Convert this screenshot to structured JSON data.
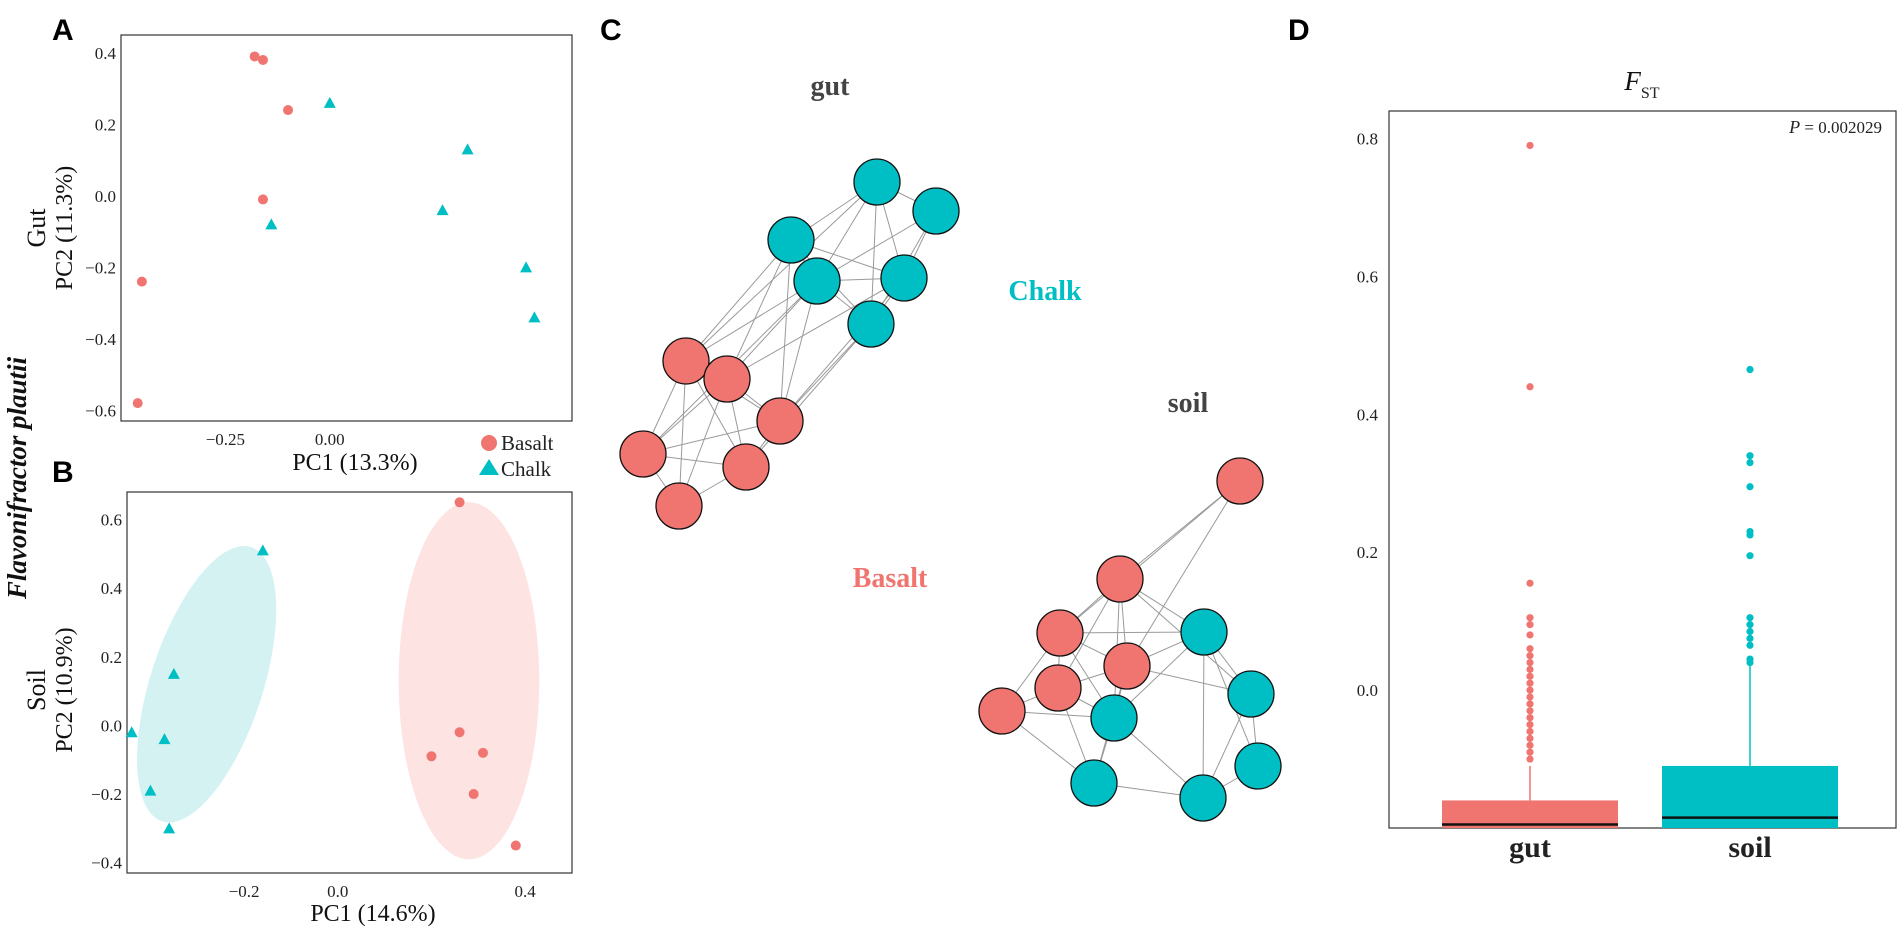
{
  "figure": {
    "species_label": "Flavonifractor plautii",
    "legend": {
      "basalt": "Basalt",
      "chalk": "Chalk"
    },
    "colors": {
      "basalt": "#F07470",
      "chalk": "#00BFC4",
      "basalt_ellipse": "#FDE3E1",
      "chalk_ellipse": "#D5F2F3",
      "edge": "#9a9a9a"
    }
  },
  "chart_data": [
    {
      "panel": "A",
      "type": "scatter",
      "group_label": "Gut",
      "xlabel": "PC1 (13.3%)",
      "ylabel": "PC2 (11.3%)",
      "xlim": [
        -0.5,
        0.58
      ],
      "ylim": [
        -0.63,
        0.45
      ],
      "x_ticks": [
        -0.25,
        0.0
      ],
      "x_tick_labels": [
        "−0.25",
        "0.00"
      ],
      "y_ticks": [
        0.4,
        0.2,
        0.0,
        -0.2,
        -0.4,
        -0.6
      ],
      "y_tick_labels": [
        "0.4",
        "0.2",
        "0.0",
        "−0.2",
        "−0.4",
        "−0.6"
      ],
      "series": [
        {
          "name": "Basalt",
          "marker": "circle",
          "x": [
            -0.18,
            -0.16,
            -0.1,
            -0.16,
            -0.45,
            -0.46
          ],
          "y": [
            0.39,
            0.38,
            0.24,
            -0.01,
            -0.24,
            -0.58
          ]
        },
        {
          "name": "Chalk",
          "marker": "triangle",
          "x": [
            0.0,
            0.33,
            0.27,
            -0.14,
            0.47,
            0.49
          ],
          "y": [
            0.26,
            0.13,
            -0.04,
            -0.08,
            -0.2,
            -0.34
          ]
        }
      ]
    },
    {
      "panel": "B",
      "type": "scatter",
      "group_label": "Soil",
      "xlabel": "PC1 (14.6%)",
      "ylabel": "PC2 (10.9%)",
      "xlim": [
        -0.45,
        0.5
      ],
      "ylim": [
        -0.43,
        0.68
      ],
      "x_ticks": [
        -0.2,
        0.0,
        0.4
      ],
      "x_tick_labels": [
        "−0.2",
        "0.0",
        "0.4"
      ],
      "y_ticks": [
        0.6,
        0.4,
        0.2,
        0.0,
        -0.2,
        -0.4
      ],
      "y_tick_labels": [
        "0.6",
        "0.4",
        "0.2",
        "0.0",
        "−0.2",
        "−0.4"
      ],
      "series": [
        {
          "name": "Basalt",
          "marker": "circle",
          "x": [
            0.26,
            0.26,
            0.2,
            0.31,
            0.29,
            0.38
          ],
          "y": [
            0.65,
            -0.02,
            -0.09,
            -0.08,
            -0.2,
            -0.35
          ]
        },
        {
          "name": "Chalk",
          "marker": "triangle",
          "x": [
            -0.16,
            -0.35,
            -0.37,
            -0.44,
            -0.4,
            -0.36
          ],
          "y": [
            0.51,
            0.15,
            -0.04,
            -0.02,
            -0.19,
            -0.3
          ]
        }
      ],
      "ellipses": [
        {
          "group": "Chalk",
          "cx": -0.28,
          "cy": 0.12,
          "rx": 0.12,
          "ry": 0.42,
          "angle_deg": 18
        },
        {
          "group": "Basalt",
          "cx": 0.28,
          "cy": 0.13,
          "rx": 0.15,
          "ry": 0.52,
          "angle_deg": 0
        }
      ]
    },
    {
      "panel": "C",
      "type": "network",
      "titles": [
        "gut",
        "soil"
      ],
      "group_labels": {
        "chalk": "Chalk",
        "basalt": "Basalt"
      },
      "node_count": {
        "gut": {
          "Basalt": 6,
          "Chalk": 6
        },
        "soil": {
          "Basalt": 6,
          "Chalk": 6
        }
      }
    },
    {
      "panel": "D",
      "type": "box",
      "title_main": "F",
      "title_sub": "ST",
      "p_label_prefix": "P",
      "p_label_value": " = 0.002029",
      "categories": [
        "gut",
        "soil"
      ],
      "ylim": [
        -0.2,
        0.84
      ],
      "y_ticks": [
        0.0,
        0.2,
        0.4,
        0.6,
        0.8
      ],
      "y_tick_labels": [
        "0.0",
        "0.2",
        "0.4",
        "0.6",
        "0.8"
      ],
      "boxes": [
        {
          "category": "gut",
          "q1": -0.2,
          "median": -0.195,
          "q3": -0.16,
          "whisker_low": -0.2,
          "whisker_high": -0.11,
          "outliers": [
            0.79,
            0.44,
            0.155,
            0.105,
            0.095,
            0.08,
            0.06,
            0.05,
            0.04,
            0.03,
            0.02,
            0.01,
            0.0,
            -0.01,
            -0.02,
            -0.03,
            -0.04,
            -0.05,
            -0.06,
            -0.07,
            -0.08,
            -0.09,
            -0.1
          ]
        },
        {
          "category": "soil",
          "q1": -0.2,
          "median": -0.185,
          "q3": -0.11,
          "whisker_low": -0.2,
          "whisker_high": 0.035,
          "outliers": [
            0.465,
            0.34,
            0.33,
            0.295,
            0.23,
            0.225,
            0.195,
            0.105,
            0.095,
            0.085,
            0.075,
            0.065,
            0.045,
            0.04
          ]
        }
      ]
    }
  ]
}
